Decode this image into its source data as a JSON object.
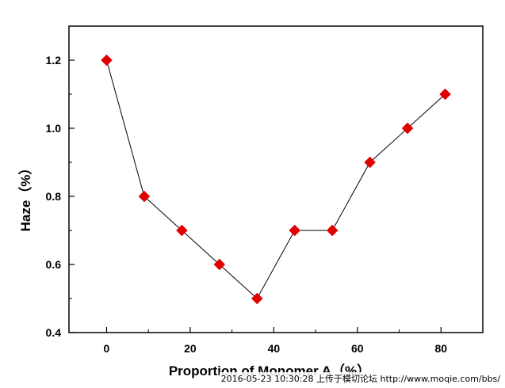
{
  "chart_data": {
    "type": "line",
    "title": "",
    "xlabel": "Proportion of Monomer A（%）",
    "ylabel": "Haze（%）",
    "xlim": [
      -9,
      90
    ],
    "ylim": [
      0.4,
      1.3
    ],
    "xticks": [
      0,
      20,
      40,
      60,
      80
    ],
    "yticks": [
      0.4,
      0.6,
      0.8,
      1.0,
      1.2
    ],
    "ytick_labels": [
      "0.4",
      "0.6",
      "0.8",
      "1.0",
      "1.2"
    ],
    "grid": false,
    "marker": "diamond",
    "colors": {
      "marker": "#e00000",
      "line": "#000000",
      "axis": "#000000"
    },
    "series": [
      {
        "x": [
          0,
          9,
          18,
          27,
          36,
          45,
          54,
          63,
          72,
          81
        ],
        "y": [
          1.2,
          0.8,
          0.7,
          0.6,
          0.5,
          0.7,
          0.7,
          0.9,
          1.0,
          1.1
        ]
      }
    ]
  },
  "watermark": "2016-05-23 10:30:28 上传于模切论坛 http://www.moqie.com/bbs/"
}
